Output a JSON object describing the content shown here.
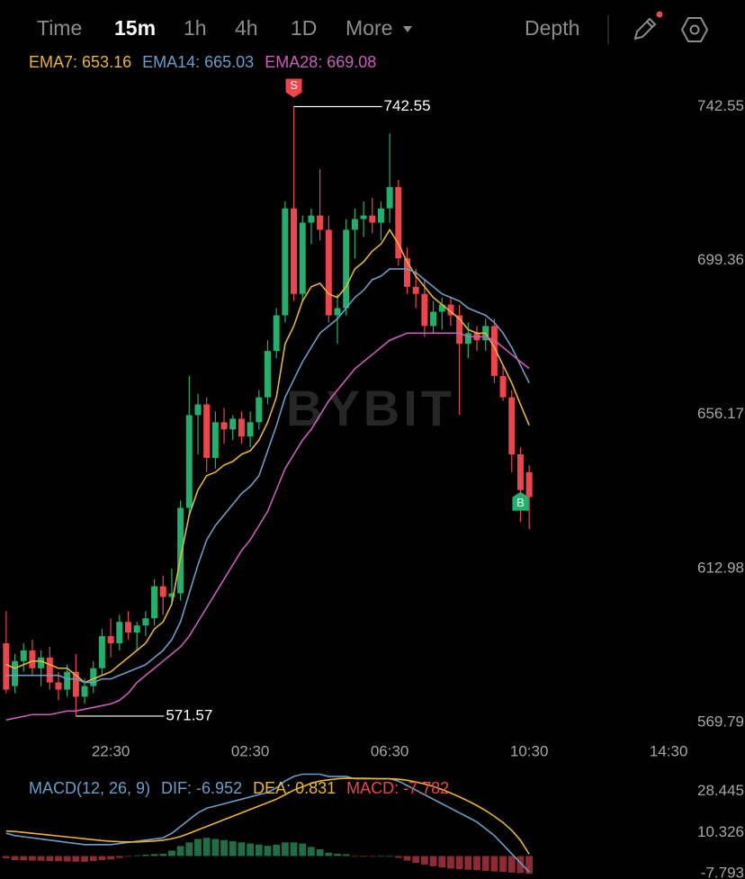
{
  "toolbar": {
    "items": [
      "Time",
      "15m",
      "1h",
      "4h",
      "1D",
      "More"
    ],
    "depth": "Depth"
  },
  "chart_data": [
    {
      "type": "candlestick",
      "watermark": "BYBIT",
      "sell_marker": "S",
      "buy_marker": "B",
      "up_color": "#20b26c",
      "down_color": "#ef454a",
      "categories": [
        null,
        null,
        null,
        null,
        null,
        null,
        null,
        null,
        null,
        null,
        null,
        null,
        "22:30",
        null,
        null,
        null,
        null,
        null,
        null,
        null,
        null,
        null,
        null,
        null,
        null,
        null,
        null,
        null,
        "02:30",
        null,
        null,
        null,
        null,
        null,
        null,
        null,
        null,
        null,
        null,
        null,
        null,
        null,
        null,
        null,
        "06:30",
        null,
        null,
        null,
        null,
        null,
        null,
        null,
        null,
        null,
        null,
        null,
        null,
        null,
        null,
        null,
        "10:30",
        null,
        null,
        null,
        null,
        null,
        null,
        null,
        null,
        null,
        null,
        null,
        null,
        null,
        null,
        null,
        "14:30"
      ],
      "open": [
        592,
        580,
        587,
        590,
        585,
        588,
        581,
        579,
        584,
        577,
        580,
        585,
        594,
        592,
        598,
        595,
        597,
        599,
        608,
        605,
        606,
        630,
        656,
        659,
        644,
        654,
        652,
        655,
        650,
        654,
        661,
        674,
        684,
        714,
        690,
        710,
        712,
        708,
        684,
        686,
        708,
        711,
        712,
        710,
        714,
        720,
        700,
        692,
        690,
        681,
        685,
        687,
        684,
        676,
        679,
        677,
        681,
        667,
        661,
        645,
        640,
        null,
        null,
        null,
        null,
        null,
        null,
        null,
        null,
        null,
        null,
        null,
        null,
        null,
        null,
        null,
        null
      ],
      "high": [
        601,
        589,
        592,
        593,
        590,
        591,
        584,
        586,
        589,
        582,
        587,
        596,
        599,
        600,
        601,
        598,
        601,
        610,
        611,
        613,
        632,
        667,
        662,
        661,
        657,
        658,
        656,
        657,
        657,
        663,
        677,
        686,
        716,
        742.55,
        712,
        714,
        725,
        712,
        690,
        711,
        714,
        716,
        717,
        716,
        735,
        722,
        703,
        697,
        694,
        688,
        689,
        689,
        687,
        682,
        681,
        683,
        683,
        670,
        663,
        647,
        642,
        null,
        null,
        null,
        null,
        null,
        null,
        null,
        null,
        null,
        null,
        null,
        null,
        null,
        null,
        null,
        null
      ],
      "low": [
        578,
        578,
        584,
        583,
        580,
        579,
        576,
        577,
        571.57,
        575,
        578,
        583,
        588,
        590,
        593,
        590,
        594,
        597,
        600,
        603,
        604,
        628,
        645,
        640,
        641,
        648,
        649,
        648,
        647,
        652,
        659,
        672,
        682,
        688,
        688,
        704,
        705,
        682,
        676,
        684,
        700,
        706,
        707,
        705,
        710,
        698,
        690,
        686,
        678,
        679,
        680,
        681,
        656,
        672,
        674,
        674,
        665,
        660,
        640,
        626,
        624,
        null,
        null,
        null,
        null,
        null,
        null,
        null,
        null,
        null,
        null,
        null,
        null,
        null,
        null,
        null,
        null
      ],
      "close": [
        579,
        587,
        590,
        585,
        588,
        581,
        579,
        584,
        577,
        580,
        585,
        594,
        592,
        598,
        595,
        597,
        599,
        608,
        605,
        606,
        630,
        656,
        659,
        644,
        654,
        652,
        655,
        650,
        654,
        661,
        674,
        684,
        714,
        690,
        710,
        712,
        708,
        684,
        686,
        708,
        711,
        712,
        710,
        714,
        720,
        700,
        692,
        690,
        681,
        685,
        687,
        684,
        676,
        679,
        677,
        681,
        667,
        661,
        645,
        635,
        633,
        null,
        null,
        null,
        null,
        null,
        null,
        null,
        null,
        null,
        null,
        null,
        null,
        null,
        null,
        null,
        null
      ],
      "series": [
        {
          "name": "EMA7:",
          "current": 653.16,
          "color": "#e9b434",
          "values": [
            586,
            585,
            586,
            587,
            587,
            586,
            585,
            585,
            583,
            581,
            582,
            583,
            584,
            586,
            588,
            590,
            592,
            596,
            598,
            603,
            616,
            628,
            635,
            639,
            640,
            642,
            643,
            645,
            646,
            649,
            654,
            661,
            676,
            681,
            688,
            692,
            693,
            690,
            689,
            692,
            697,
            699,
            702,
            704,
            708,
            704,
            699,
            695,
            692,
            689,
            687,
            685,
            683,
            680,
            679,
            679,
            675,
            670,
            665,
            659,
            653.16,
            null,
            null,
            null,
            null,
            null,
            null,
            null,
            null,
            null,
            null,
            null,
            null,
            null,
            null,
            null,
            null
          ]
        },
        {
          "name": "EMA14:",
          "current": 665.03,
          "color": "#6b9dc6",
          "values": [
            583,
            583,
            583,
            583,
            583,
            583,
            583,
            582,
            582,
            581,
            581,
            582,
            582,
            583,
            584,
            585,
            586,
            588,
            590,
            593,
            598,
            606,
            614,
            621,
            625,
            628,
            631,
            634,
            636,
            639,
            646,
            653,
            661,
            666,
            671,
            675,
            679,
            681,
            683,
            686,
            689,
            691,
            694,
            695,
            697,
            697,
            697,
            696,
            694,
            692,
            690,
            689,
            688,
            686,
            685,
            684,
            682,
            679,
            675,
            670,
            665.03,
            null,
            null,
            null,
            null,
            null,
            null,
            null,
            null,
            null,
            null,
            null,
            null,
            null,
            null,
            null,
            null
          ]
        },
        {
          "name": "EMA28:",
          "current": 669.08,
          "color": "#cb5fb8",
          "values": [
            570.5,
            571,
            571.5,
            572,
            572,
            572,
            572.5,
            573,
            573,
            573.5,
            574,
            574.5,
            575,
            576,
            578,
            581,
            583,
            585,
            587,
            589,
            591,
            594,
            598,
            602,
            606,
            610,
            614,
            618,
            621,
            625,
            629,
            635,
            641,
            645,
            649,
            652,
            656,
            660,
            663,
            666,
            669,
            671,
            673,
            675,
            677,
            678,
            679,
            679,
            679,
            679,
            679,
            679,
            679,
            678,
            678,
            678,
            677,
            675,
            673,
            671,
            669.08,
            null,
            null,
            null,
            null,
            null,
            null,
            null,
            null,
            null,
            null,
            null,
            null,
            null,
            null,
            null,
            null
          ]
        }
      ],
      "ylim": [
        565.5,
        751
      ],
      "yticks": [
        569.79,
        612.98,
        656.17,
        699.36,
        742.55
      ],
      "grid": false
    },
    {
      "type": "macd",
      "title": "MACD(12, 26, 9)",
      "up_color": "#1f6e47",
      "down_color": "#8d2a33",
      "series": [
        {
          "name": "DIF:",
          "current": -6.952,
          "color": "#6b9dc6",
          "values": [
            10,
            9,
            8.5,
            8,
            7.5,
            7,
            6.5,
            6,
            5.5,
            5,
            5,
            5,
            5,
            5.5,
            6,
            6.5,
            7,
            7.5,
            8,
            10,
            13,
            16,
            19,
            21,
            22,
            23,
            24,
            25,
            26,
            27,
            28,
            30,
            33,
            35,
            36,
            36,
            36,
            35,
            35,
            35,
            34,
            34,
            34,
            34,
            34,
            33,
            31,
            29,
            27,
            25,
            23,
            21,
            19,
            17,
            15,
            12,
            9,
            5,
            1,
            -3,
            -6.952,
            null,
            null,
            null,
            null,
            null,
            null,
            null,
            null,
            null,
            null,
            null,
            null,
            null,
            null,
            null,
            null
          ]
        },
        {
          "name": "DEA:",
          "current": 0.831,
          "color": "#e9b434",
          "values": [
            11,
            10.8,
            10.4,
            10,
            9.6,
            9.2,
            8.8,
            8.4,
            8,
            7.6,
            7.2,
            6.8,
            6.5,
            6.3,
            6.2,
            6.2,
            6.4,
            6.6,
            7,
            7.6,
            8.6,
            10,
            11.5,
            13,
            14.5,
            16,
            17.5,
            19,
            20.5,
            22,
            23.5,
            25,
            27,
            29,
            30.5,
            32,
            33,
            33.5,
            34,
            34.2,
            34.2,
            34.2,
            34.1,
            34,
            34,
            33.8,
            33.3,
            32.6,
            31.7,
            30.6,
            29.3,
            27.7,
            26,
            24.2,
            22.2,
            20,
            17.5,
            14.7,
            11.3,
            6.9,
            0.831,
            null,
            null,
            null,
            null,
            null,
            null,
            null,
            null,
            null,
            null,
            null,
            null,
            null,
            null,
            null,
            null
          ]
        },
        {
          "name": "MACD:",
          "current": -7.782,
          "color": "#ef454a",
          "type": "histogram",
          "values": [
            -1,
            -1.8,
            -1.9,
            -2,
            -2.1,
            -2.2,
            -2.3,
            -2.4,
            -2.5,
            -2.6,
            -2.2,
            -1.8,
            -1.5,
            -0.8,
            -0.2,
            0.3,
            0.6,
            0.9,
            1,
            2.4,
            4.4,
            6,
            7.5,
            8,
            7.5,
            7,
            6.5,
            6,
            5.5,
            5,
            4.5,
            5,
            6,
            6,
            5.5,
            4,
            3,
            1.5,
            1,
            0.8,
            -0.2,
            -0.2,
            -0.1,
            0,
            0,
            -0.8,
            -2,
            -3,
            -3.8,
            -4.5,
            -5,
            -5.5,
            -5.8,
            -6,
            -6.2,
            -6.5,
            -6.8,
            -7,
            -7.3,
            -7.5,
            -7.782,
            null,
            null,
            null,
            null,
            null,
            null,
            null,
            null,
            null,
            null,
            null,
            null,
            null,
            null,
            null,
            null
          ]
        }
      ],
      "ylim": [
        -10.1,
        36.2
      ],
      "yticks": [
        -7.793,
        10.326,
        28.445
      ]
    }
  ]
}
